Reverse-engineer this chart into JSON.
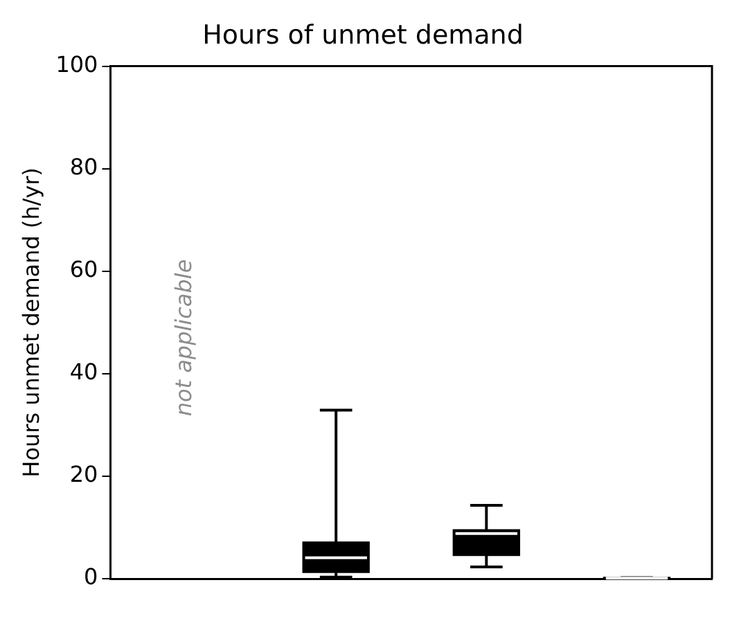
{
  "chart_data": {
    "type": "box",
    "title": "Hours of unmet demand",
    "ylabel": "Hours unmet demand (h/yr)",
    "categories": [
      null,
      null,
      null,
      null
    ],
    "boxes": [
      null,
      {
        "low": 0.3,
        "q1": 1.4,
        "median": 4.1,
        "q3": 7.0,
        "high": 32.9
      },
      {
        "low": 2.3,
        "q1": 4.7,
        "median": 8.8,
        "q3": 9.4,
        "high": 14.3
      },
      {
        "low": 0,
        "q1": 0,
        "median": 0.1,
        "q3": 0.1,
        "high": 0.2
      }
    ],
    "color": "#000000",
    "ylim": [
      0,
      100
    ],
    "yticks": [
      0,
      20,
      40,
      60,
      80,
      100
    ],
    "grid": false,
    "legend": false,
    "annotations": [
      "not applicable"
    ]
  }
}
